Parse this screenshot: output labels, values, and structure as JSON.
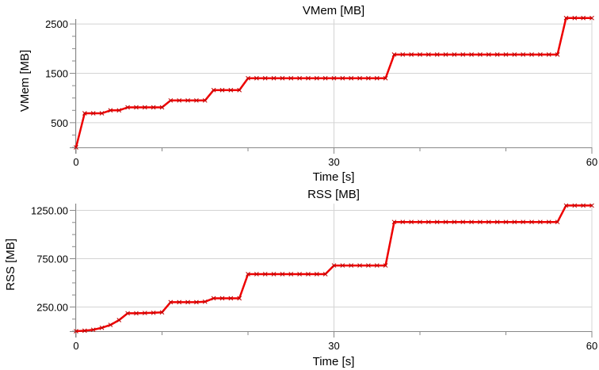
{
  "chart_data": [
    {
      "type": "line",
      "title": "VMem [MB]",
      "xlabel": "Time [s]",
      "ylabel": "VMem [MB]",
      "xlim": [
        0,
        60
      ],
      "ylim": [
        0,
        2600
      ],
      "xticks": [
        0,
        30,
        60
      ],
      "xtick_labels": [
        "0",
        "30",
        "60"
      ],
      "yticks": [
        500,
        1500,
        2500
      ],
      "ytick_labels": [
        "500",
        "1500",
        "2500"
      ],
      "grid": true,
      "color": "#ee0000",
      "series": [
        {
          "marker": "x",
          "x": [
            0,
            1,
            2,
            3,
            4,
            5,
            6,
            7,
            8,
            9,
            10,
            11,
            12,
            13,
            14,
            15,
            16,
            17,
            18,
            19,
            20,
            21,
            22,
            23,
            24,
            25,
            26,
            27,
            28,
            29,
            30,
            31,
            32,
            33,
            34,
            35,
            36,
            37,
            38,
            39,
            40,
            41,
            42,
            43,
            44,
            45,
            46,
            47,
            48,
            49,
            50,
            51,
            52,
            53,
            54,
            55,
            56,
            57,
            58,
            59,
            60
          ],
          "y": [
            0,
            690,
            690,
            690,
            750,
            750,
            810,
            810,
            810,
            810,
            810,
            950,
            950,
            950,
            950,
            950,
            1160,
            1160,
            1160,
            1160,
            1400,
            1400,
            1400,
            1400,
            1400,
            1400,
            1400,
            1400,
            1400,
            1400,
            1400,
            1400,
            1400,
            1400,
            1400,
            1400,
            1400,
            1880,
            1880,
            1880,
            1880,
            1880,
            1880,
            1880,
            1880,
            1880,
            1880,
            1880,
            1880,
            1880,
            1880,
            1880,
            1880,
            1880,
            1880,
            1880,
            1880,
            2620,
            2620,
            2620,
            2620
          ]
        }
      ]
    },
    {
      "type": "line",
      "title": "RSS [MB]",
      "xlabel": "Time [s]",
      "ylabel": "RSS [MB]",
      "xlim": [
        0,
        60
      ],
      "ylim": [
        0,
        1320
      ],
      "xticks": [
        0,
        30,
        60
      ],
      "xtick_labels": [
        "0",
        "30",
        "60"
      ],
      "yticks": [
        250,
        750,
        1250
      ],
      "ytick_labels": [
        "250.00",
        "750.00",
        "1250.00"
      ],
      "grid": true,
      "color": "#ee0000",
      "series": [
        {
          "marker": "x",
          "x": [
            0,
            1,
            2,
            3,
            4,
            5,
            6,
            7,
            8,
            9,
            10,
            11,
            12,
            13,
            14,
            15,
            16,
            17,
            18,
            19,
            20,
            21,
            22,
            23,
            24,
            25,
            26,
            27,
            28,
            29,
            30,
            31,
            32,
            33,
            34,
            35,
            36,
            37,
            38,
            39,
            40,
            41,
            42,
            43,
            44,
            45,
            46,
            47,
            48,
            49,
            50,
            51,
            52,
            53,
            54,
            55,
            56,
            57,
            58,
            59,
            60
          ],
          "y": [
            0,
            5,
            15,
            35,
            65,
            115,
            185,
            185,
            188,
            190,
            195,
            300,
            300,
            300,
            300,
            305,
            340,
            340,
            340,
            340,
            590,
            590,
            590,
            590,
            590,
            590,
            590,
            590,
            590,
            590,
            680,
            680,
            680,
            680,
            680,
            680,
            680,
            1130,
            1130,
            1130,
            1130,
            1130,
            1130,
            1130,
            1130,
            1130,
            1130,
            1130,
            1130,
            1130,
            1130,
            1130,
            1130,
            1130,
            1130,
            1130,
            1130,
            1300,
            1300,
            1300,
            1300
          ]
        }
      ]
    }
  ]
}
